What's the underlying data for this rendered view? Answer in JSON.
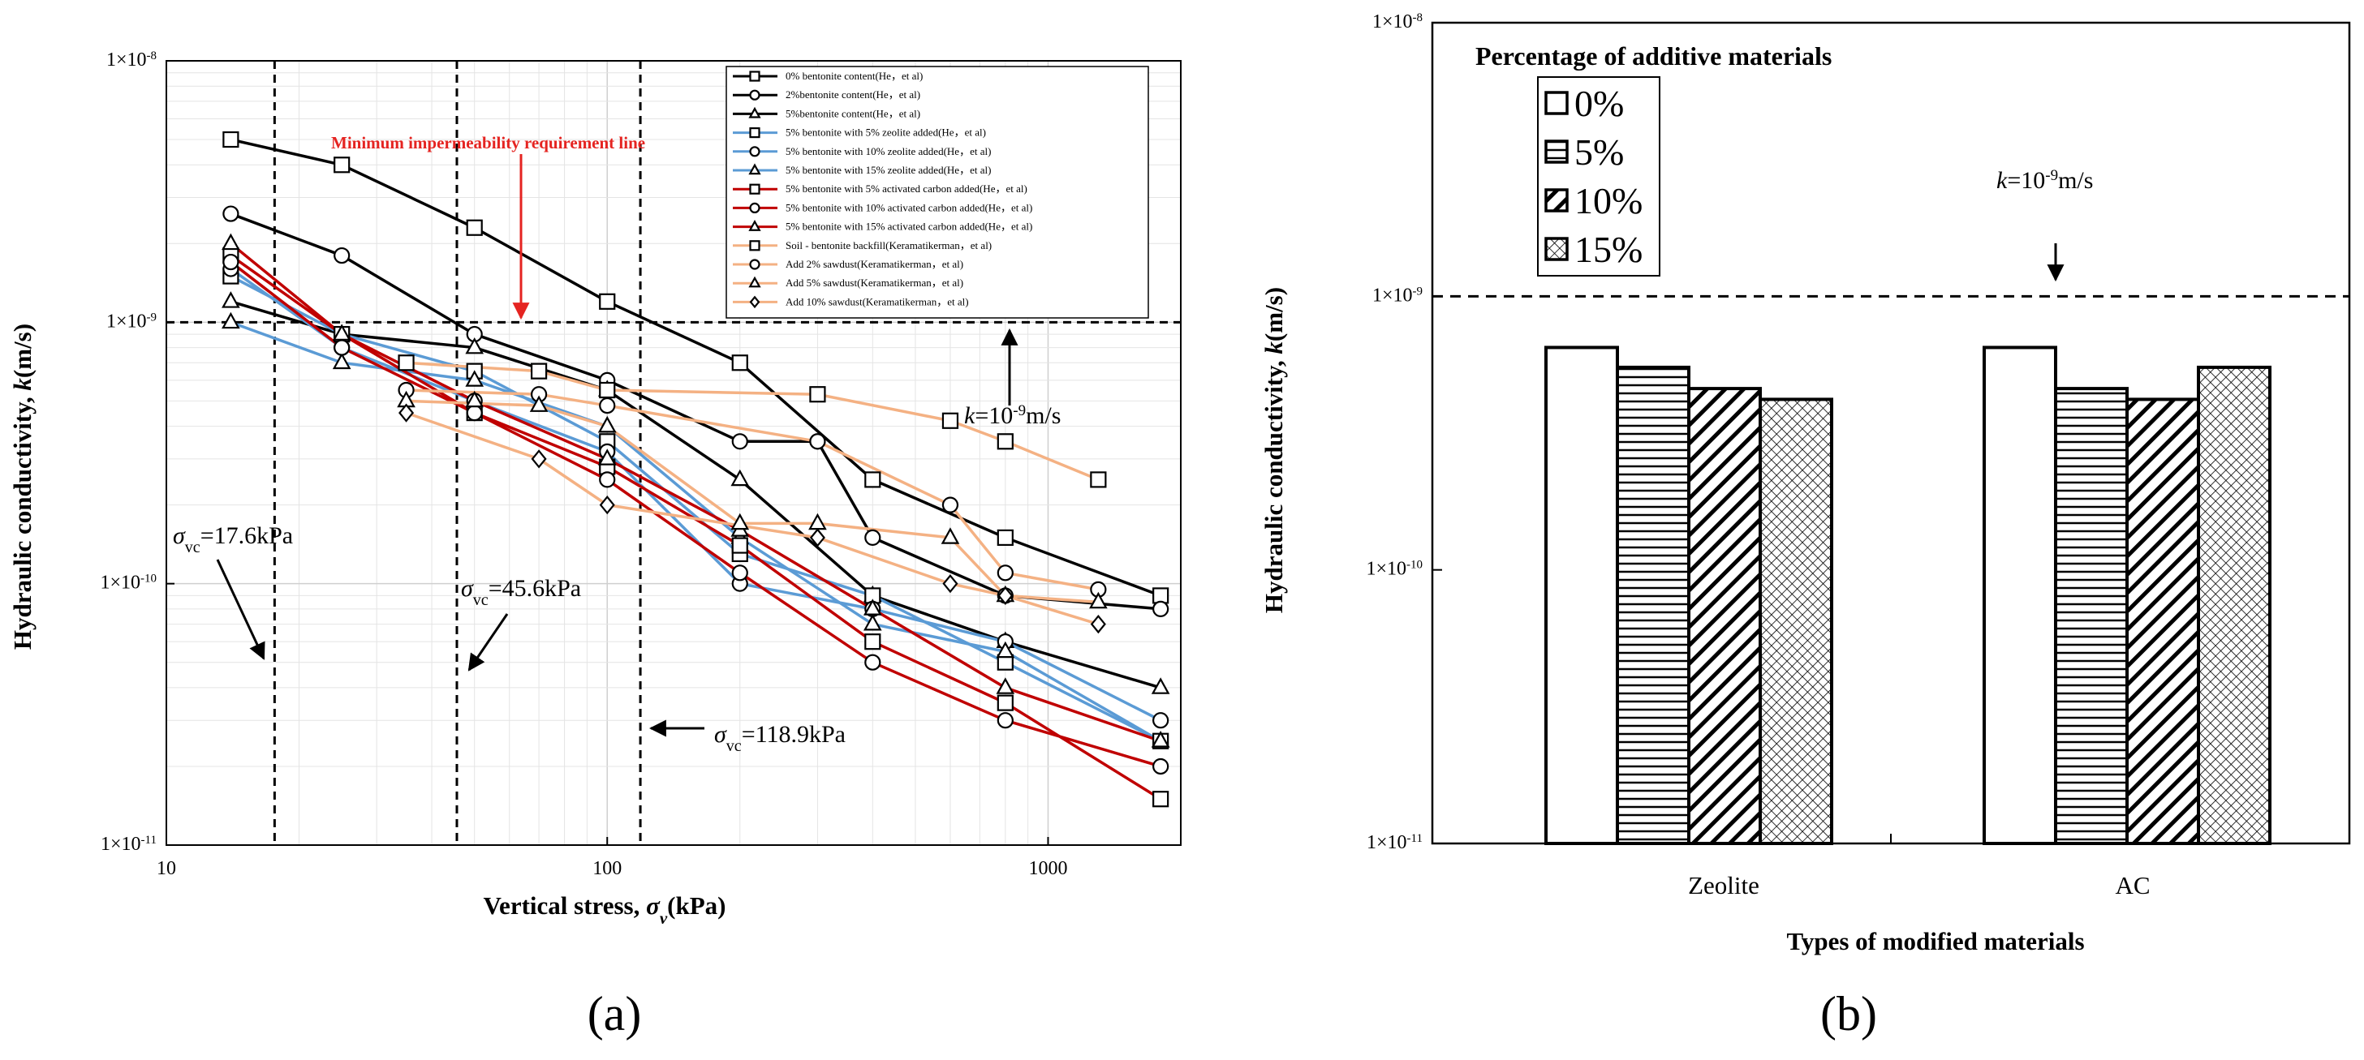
{
  "colors": {
    "black": "#000000",
    "blue": "#5b9bd5",
    "red": "#c00000",
    "peach": "#f4b183",
    "bright_red": "#e52421",
    "grid": "#e4e4e4"
  },
  "panel_labels": {
    "a": "(a)",
    "b": "(b)"
  },
  "chart_data": [
    {
      "type": "line",
      "xscale": "log",
      "yscale": "log",
      "xlabel": "Vertical stress, σv(kPa)",
      "xlabel_main": "Vertical stress, ",
      "xlabel_sym": "σ",
      "xlabel_sub": "v",
      "xlabel_unit": "(kPa)",
      "ylabel": "Hydraulic conductivity, k(m/s)",
      "ylabel_main": "Hydraulic conductivity, ",
      "ylabel_sym": "k",
      "ylabel_unit": "(m/s)",
      "xlim": [
        10,
        2000
      ],
      "ylim": [
        1e-11,
        1e-08
      ],
      "xticks": [
        10,
        100,
        1000
      ],
      "xtick_labels": [
        "10",
        "100",
        "1000"
      ],
      "yticks": [
        1e-11,
        1e-10,
        1e-09,
        1e-08
      ],
      "ytick_labels": [
        "1×10",
        "1×10",
        "1×10",
        "1×10"
      ],
      "ytick_exps": [
        "-11",
        "-10",
        "-9",
        "-8"
      ],
      "grid": true,
      "legend_position": "top-right",
      "reference_line": {
        "y": 1e-09,
        "label": "Minimum impermeability requirement line"
      },
      "k_annotation": {
        "k": "k",
        "base": "=10",
        "exp": "-9",
        "unit": "m/s"
      },
      "vertical_lines": [
        {
          "x": 17.6,
          "sym": "σ",
          "sub": "vc",
          "value": "=17.6kPa"
        },
        {
          "x": 45.6,
          "sym": "σ",
          "sub": "vc",
          "value": "=45.6kPa"
        },
        {
          "x": 118.9,
          "sym": "σ",
          "sub": "vc",
          "value": "=118.9kPa"
        }
      ],
      "series": [
        {
          "name": "0% bentonite content(He，et al)",
          "color": "black",
          "marker": "square",
          "x": [
            14,
            25,
            50,
            100,
            200,
            400,
            800,
            1800
          ],
          "y": [
            5e-09,
            4e-09,
            2.3e-09,
            1.2e-09,
            7e-10,
            2.5e-10,
            1.5e-10,
            9e-11
          ]
        },
        {
          "name": "2%bentonite content(He，et al)",
          "color": "black",
          "marker": "circle",
          "x": [
            14,
            25,
            50,
            100,
            200,
            300,
            400,
            800,
            1800
          ],
          "y": [
            2.6e-09,
            1.8e-09,
            9e-10,
            6e-10,
            3.5e-10,
            3.5e-10,
            1.5e-10,
            9e-11,
            8e-11
          ]
        },
        {
          "name": "5%bentonite content(He，et al)",
          "color": "black",
          "marker": "triangle",
          "x": [
            14,
            25,
            50,
            100,
            200,
            400,
            800,
            1800
          ],
          "y": [
            1.2e-09,
            9e-10,
            8e-10,
            5.5e-10,
            2.5e-10,
            9e-11,
            6e-11,
            4e-11
          ]
        },
        {
          "name": "5% bentonite with 5% zeolite added(He，et al)",
          "color": "blue",
          "marker": "square",
          "x": [
            14,
            25,
            50,
            100,
            200,
            400,
            800,
            1800
          ],
          "y": [
            1.5e-09,
            9e-10,
            6.5e-10,
            3.5e-10,
            1.3e-10,
            9e-11,
            5e-11,
            2.5e-11
          ]
        },
        {
          "name": "5% bentonite with 10% zeolite added(He，et al)",
          "color": "blue",
          "marker": "circle",
          "x": [
            14,
            25,
            50,
            100,
            200,
            400,
            800,
            1800
          ],
          "y": [
            1.6e-09,
            8e-10,
            5e-10,
            3.2e-10,
            1e-10,
            8e-11,
            6e-11,
            3e-11
          ]
        },
        {
          "name": "5% bentonite with 15% zeolite added(He，et al)",
          "color": "blue",
          "marker": "triangle",
          "x": [
            14,
            25,
            50,
            100,
            200,
            400,
            800,
            1800
          ],
          "y": [
            1e-09,
            7e-10,
            6e-10,
            4e-10,
            1.5e-10,
            7e-11,
            5.5e-11,
            2.5e-11
          ]
        },
        {
          "name": "5% bentonite with 5% activated carbon added(He，et al)",
          "color": "red",
          "marker": "square",
          "x": [
            14,
            25,
            50,
            100,
            200,
            400,
            800,
            1800
          ],
          "y": [
            1.8e-09,
            9e-10,
            4.5e-10,
            2.8e-10,
            1.4e-10,
            6e-11,
            3.5e-11,
            1.5e-11
          ]
        },
        {
          "name": "5% bentonite with 10% activated carbon added(He，et al)",
          "color": "red",
          "marker": "circle",
          "x": [
            14,
            25,
            50,
            100,
            200,
            400,
            800,
            1800
          ],
          "y": [
            1.7e-09,
            8e-10,
            4.5e-10,
            2.5e-10,
            1.1e-10,
            5e-11,
            3e-11,
            2e-11
          ]
        },
        {
          "name": "5% bentonite with 15% activated carbon added(He，et al)",
          "color": "red",
          "marker": "triangle",
          "x": [
            14,
            25,
            50,
            100,
            200,
            400,
            800,
            1800
          ],
          "y": [
            2e-09,
            9e-10,
            5e-10,
            3e-10,
            1.6e-10,
            8e-11,
            4e-11,
            2.5e-11
          ]
        },
        {
          "name": "Soil - bentonite backfill(Keramatikerman，et al)",
          "color": "peach",
          "marker": "square",
          "x": [
            35,
            70,
            100,
            300,
            600,
            800,
            1300
          ],
          "y": [
            7e-10,
            6.5e-10,
            5.5e-10,
            5.3e-10,
            4.2e-10,
            3.5e-10,
            2.5e-10
          ]
        },
        {
          "name": "Add 2% sawdust(Keramatikerman，et al)",
          "color": "peach",
          "marker": "circle",
          "x": [
            35,
            70,
            100,
            300,
            600,
            800,
            1300
          ],
          "y": [
            5.5e-10,
            5.3e-10,
            4.8e-10,
            3.5e-10,
            2e-10,
            1.1e-10,
            9.5e-11
          ]
        },
        {
          "name": "Add 5% sawdust(Keramatikerman，et al)",
          "color": "peach",
          "marker": "triangle",
          "x": [
            35,
            70,
            100,
            200,
            300,
            600,
            800,
            1300
          ],
          "y": [
            5e-10,
            4.8e-10,
            4e-10,
            1.7e-10,
            1.7e-10,
            1.5e-10,
            9e-11,
            8.5e-11
          ]
        },
        {
          "name": "Add 10% sawdust(Keramatikerman，et al)",
          "color": "peach",
          "marker": "diamond",
          "x": [
            35,
            70,
            100,
            300,
            600,
            800,
            1300
          ],
          "y": [
            4.5e-10,
            3e-10,
            2e-10,
            1.5e-10,
            1e-10,
            9e-11,
            7e-11
          ]
        }
      ]
    },
    {
      "type": "bar",
      "yscale": "log",
      "xlabel": "Types of modified materials",
      "ylabel": "Hydraulic conductivity, k(m/s)",
      "ylabel_main": "Hydraulic conductivity, ",
      "ylabel_sym": "k",
      "ylabel_unit": "(m/s)",
      "ylim": [
        1e-11,
        1e-08
      ],
      "yticks": [
        1e-11,
        1e-10,
        1e-09,
        1e-08
      ],
      "ytick_labels": [
        "1×10",
        "1×10",
        "1×10",
        "1×10"
      ],
      "ytick_exps": [
        "-11",
        "-10",
        "-9",
        "-8"
      ],
      "categories": [
        "Zeolite",
        "AC"
      ],
      "legend_title": "Percentage of additive materials",
      "legend_position": "top-left",
      "reference_line": {
        "y": 1e-09
      },
      "k_annotation": {
        "k": "k",
        "base": "=10",
        "exp": "-9",
        "unit": "m/s"
      },
      "series": [
        {
          "name": "0%",
          "pattern": "solid-white",
          "values": [
            6.5e-10,
            6.5e-10
          ]
        },
        {
          "name": "5%",
          "pattern": "horizontal",
          "values": [
            5.5e-10,
            4.6e-10
          ]
        },
        {
          "name": "10%",
          "pattern": "diagonal",
          "values": [
            4.6e-10,
            4.2e-10
          ]
        },
        {
          "name": "15%",
          "pattern": "crosshatch",
          "values": [
            4.2e-10,
            5.5e-10
          ]
        }
      ]
    }
  ]
}
